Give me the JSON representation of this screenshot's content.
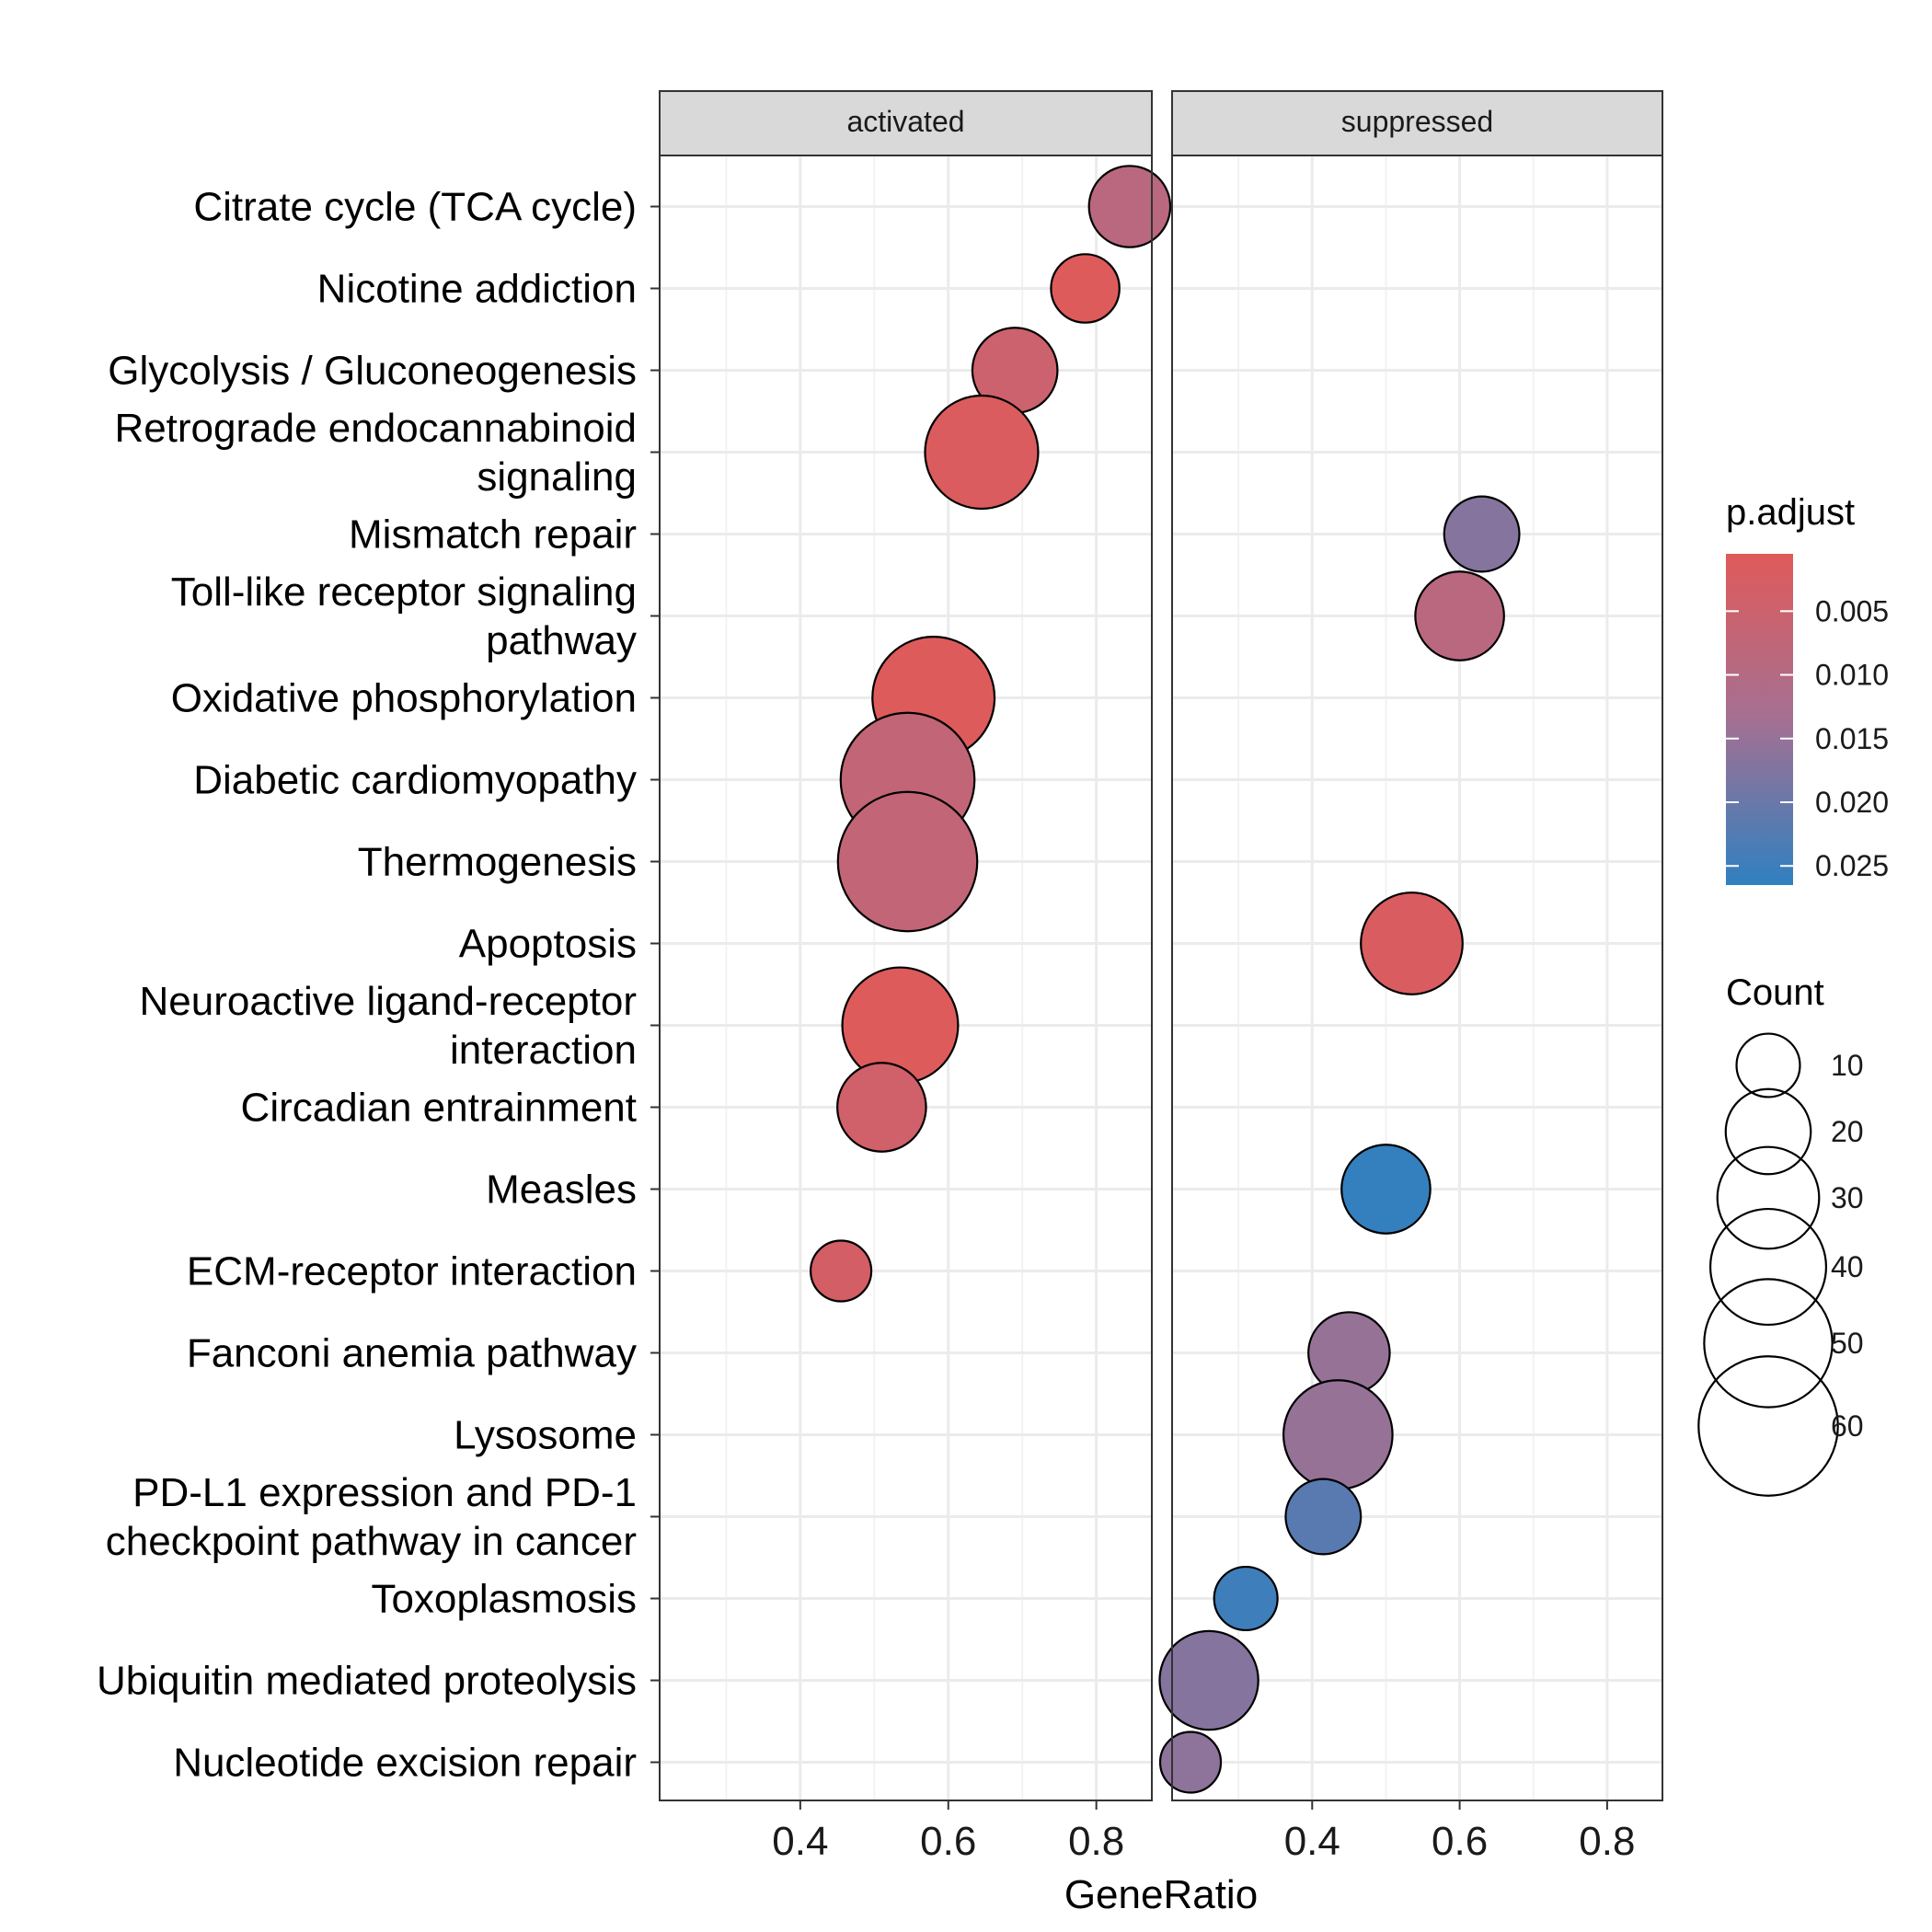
{
  "chart_data": {
    "type": "scatter",
    "xlabel": "GeneRatio",
    "xlim": [
      0.21,
      0.875
    ],
    "x_ticks": [
      "0.4",
      "0.6",
      "0.8"
    ],
    "x_tick_values": [
      0.4,
      0.6,
      0.8
    ],
    "x_minor_grid": [
      0.3,
      0.5,
      0.7
    ],
    "grid": true,
    "panels": [
      "activated",
      "suppressed"
    ],
    "categories": [
      "Citrate cycle (TCA cycle)",
      "Nicotine addiction",
      "Glycolysis / Gluconeogenesis",
      "Retrograde endocannabinoid signaling",
      "Mismatch repair",
      "Toll-like receptor signaling pathway",
      "Oxidative phosphorylation",
      "Diabetic cardiomyopathy",
      "Thermogenesis",
      "Apoptosis",
      "Neuroactive ligand-receptor interaction",
      "Circadian entrainment",
      "Measles",
      "ECM-receptor interaction",
      "Fanconi anemia pathway",
      "Lysosome",
      "PD-L1 expression and PD-1 checkpoint pathway in cancer",
      "Toxoplasmosis",
      "Ubiquitin mediated proteolysis",
      "Nucleotide excision repair"
    ],
    "category_lines": [
      [
        "Citrate cycle (TCA cycle)"
      ],
      [
        "Nicotine addiction"
      ],
      [
        "Glycolysis / Gluconeogenesis"
      ],
      [
        "Retrograde endocannabinoid",
        "signaling"
      ],
      [
        "Mismatch repair"
      ],
      [
        "Toll-like receptor signaling",
        "pathway"
      ],
      [
        "Oxidative phosphorylation"
      ],
      [
        "Diabetic cardiomyopathy"
      ],
      [
        "Thermogenesis"
      ],
      [
        "Apoptosis"
      ],
      [
        "Neuroactive ligand-receptor",
        "interaction"
      ],
      [
        "Circadian entrainment"
      ],
      [
        "Measles"
      ],
      [
        "ECM-receptor interaction"
      ],
      [
        "Fanconi anemia pathway"
      ],
      [
        "Lysosome"
      ],
      [
        "PD-L1 expression and PD-1",
        "checkpoint pathway in cancer"
      ],
      [
        "Toxoplasmosis"
      ],
      [
        "Ubiquitin mediated proteolysis"
      ],
      [
        "Nucleotide excision repair"
      ]
    ],
    "points": [
      {
        "panel": "activated",
        "category": "Citrate cycle (TCA cycle)",
        "x": 0.845,
        "count": 18,
        "p_adjust": 0.009
      },
      {
        "panel": "activated",
        "category": "Nicotine addiction",
        "x": 0.785,
        "count": 12,
        "p_adjust": 0.001
      },
      {
        "panel": "activated",
        "category": "Glycolysis / Gluconeogenesis",
        "x": 0.69,
        "count": 20,
        "p_adjust": 0.005
      },
      {
        "panel": "activated",
        "category": "Retrograde endocannabinoid signaling",
        "x": 0.645,
        "count": 38,
        "p_adjust": 0.0015
      },
      {
        "panel": "suppressed",
        "category": "Mismatch repair",
        "x": 0.63,
        "count": 15,
        "p_adjust": 0.017
      },
      {
        "panel": "suppressed",
        "category": "Toll-like receptor signaling pathway",
        "x": 0.6,
        "count": 22,
        "p_adjust": 0.009
      },
      {
        "panel": "activated",
        "category": "Oxidative phosphorylation",
        "x": 0.58,
        "count": 45,
        "p_adjust": 0.001
      },
      {
        "panel": "activated",
        "category": "Diabetic cardiomyopathy",
        "x": 0.545,
        "count": 55,
        "p_adjust": 0.007
      },
      {
        "panel": "activated",
        "category": "Thermogenesis",
        "x": 0.545,
        "count": 60,
        "p_adjust": 0.007
      },
      {
        "panel": "suppressed",
        "category": "Apoptosis",
        "x": 0.535,
        "count": 30,
        "p_adjust": 0.002
      },
      {
        "panel": "activated",
        "category": "Neuroactive ligand-receptor interaction",
        "x": 0.535,
        "count": 40,
        "p_adjust": 0.001
      },
      {
        "panel": "activated",
        "category": "Circadian entrainment",
        "x": 0.51,
        "count": 22,
        "p_adjust": 0.004
      },
      {
        "panel": "suppressed",
        "category": "Measles",
        "x": 0.5,
        "count": 22,
        "p_adjust": 0.026
      },
      {
        "panel": "activated",
        "category": "ECM-receptor interaction",
        "x": 0.455,
        "count": 9,
        "p_adjust": 0.003
      },
      {
        "panel": "suppressed",
        "category": "Fanconi anemia pathway",
        "x": 0.45,
        "count": 18,
        "p_adjust": 0.015
      },
      {
        "panel": "suppressed",
        "category": "Lysosome",
        "x": 0.435,
        "count": 35,
        "p_adjust": 0.015
      },
      {
        "panel": "suppressed",
        "category": "PD-L1 expression and PD-1 checkpoint pathway in cancer",
        "x": 0.415,
        "count": 15,
        "p_adjust": 0.022
      },
      {
        "panel": "suppressed",
        "category": "Toxoplasmosis",
        "x": 0.31,
        "count": 10,
        "p_adjust": 0.025
      },
      {
        "panel": "suppressed",
        "category": "Ubiquitin mediated proteolysis",
        "x": 0.26,
        "count": 28,
        "p_adjust": 0.017
      },
      {
        "panel": "suppressed",
        "category": "Nucleotide excision repair",
        "x": 0.235,
        "count": 9,
        "p_adjust": 0.016
      }
    ],
    "color_legend": {
      "title": "p.adjust",
      "ticks": [
        "0.005",
        "0.010",
        "0.015",
        "0.020",
        "0.025"
      ],
      "tick_values": [
        0.005,
        0.01,
        0.015,
        0.02,
        0.025
      ],
      "range": [
        0.0005,
        0.0265
      ],
      "low_color": "#E05A5A",
      "high_color": "#3080C0",
      "placement": "right"
    },
    "size_legend": {
      "title": "Count",
      "values": [
        10,
        20,
        30,
        40,
        50,
        60
      ],
      "labels": [
        "10",
        "20",
        "30",
        "40",
        "50",
        "60"
      ],
      "placement": "right"
    }
  }
}
